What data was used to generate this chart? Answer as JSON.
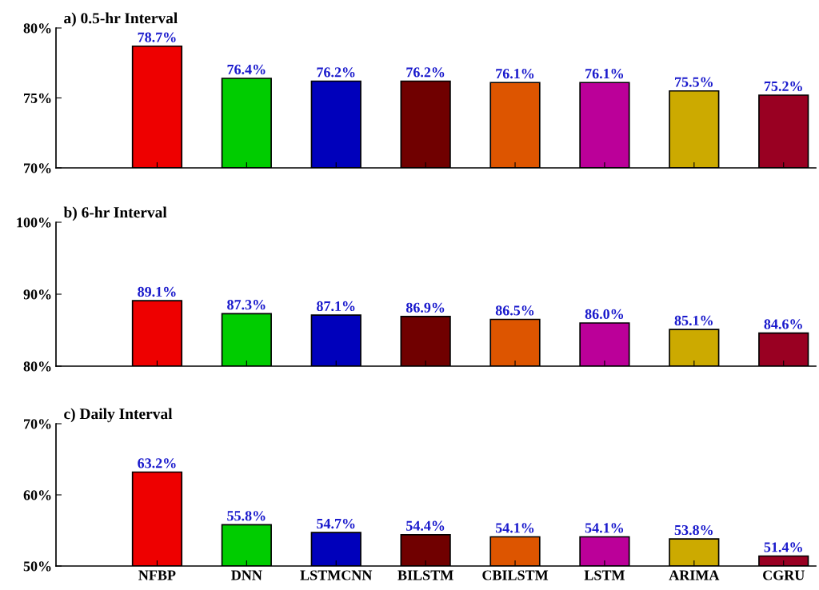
{
  "chart_data": [
    {
      "type": "bar",
      "title": "a) 0.5-hr Interval",
      "categories": [
        null,
        null,
        null,
        null,
        null,
        null,
        null,
        null
      ],
      "values": [
        78.7,
        76.4,
        76.2,
        76.2,
        76.1,
        76.1,
        75.5,
        75.2
      ],
      "value_labels": [
        "78.7%",
        "76.4%",
        "76.2%",
        "76.2%",
        "76.1%",
        "76.1%",
        "75.5%",
        "75.2%"
      ],
      "colors": [
        "#ee0000",
        "#00cc00",
        "#0000bb",
        "#700000",
        "#dd5500",
        "#bb0099",
        "#ccaa00",
        "#990022"
      ],
      "ylim": [
        70,
        80
      ],
      "yticks": [
        {
          "value": 70,
          "label": "70%"
        },
        {
          "value": 75,
          "label": "75%"
        },
        {
          "value": 80,
          "label": "80%"
        }
      ],
      "tick_labels": "y",
      "grid": false,
      "legend": false
    },
    {
      "type": "bar",
      "title": "b) 6-hr Interval",
      "categories": [
        null,
        null,
        null,
        null,
        null,
        null,
        null,
        null
      ],
      "values": [
        89.1,
        87.3,
        87.1,
        86.9,
        86.5,
        86.0,
        85.1,
        84.6
      ],
      "value_labels": [
        "89.1%",
        "87.3%",
        "87.1%",
        "86.9%",
        "86.5%",
        "86.0%",
        "85.1%",
        "84.6%"
      ],
      "colors": [
        "#ee0000",
        "#00cc00",
        "#0000bb",
        "#700000",
        "#dd5500",
        "#bb0099",
        "#ccaa00",
        "#990022"
      ],
      "ylim": [
        80,
        100
      ],
      "yticks": [
        {
          "value": 80,
          "label": "80%"
        },
        {
          "value": 90,
          "label": "90%"
        },
        {
          "value": 100,
          "label": "100%"
        }
      ],
      "tick_labels": "y",
      "grid": false,
      "legend": false
    },
    {
      "type": "bar",
      "title": "c) Daily Interval",
      "categories": [
        "NFBP",
        "DNN",
        "LSTMCNN",
        "BILSTM",
        "CBILSTM",
        "LSTM",
        "ARIMA",
        "CGRU"
      ],
      "values": [
        63.2,
        55.8,
        54.7,
        54.4,
        54.1,
        54.1,
        53.8,
        51.4
      ],
      "value_labels": [
        "63.2%",
        "55.8%",
        "54.7%",
        "54.4%",
        "54.1%",
        "54.1%",
        "53.8%",
        "51.4%"
      ],
      "colors": [
        "#ee0000",
        "#00cc00",
        "#0000bb",
        "#700000",
        "#dd5500",
        "#bb0099",
        "#ccaa00",
        "#990022"
      ],
      "ylim": [
        50,
        70
      ],
      "yticks": [
        {
          "value": 50,
          "label": "50%"
        },
        {
          "value": 60,
          "label": "60%"
        },
        {
          "value": 70,
          "label": "70%"
        }
      ],
      "grid": false,
      "legend": false
    }
  ]
}
